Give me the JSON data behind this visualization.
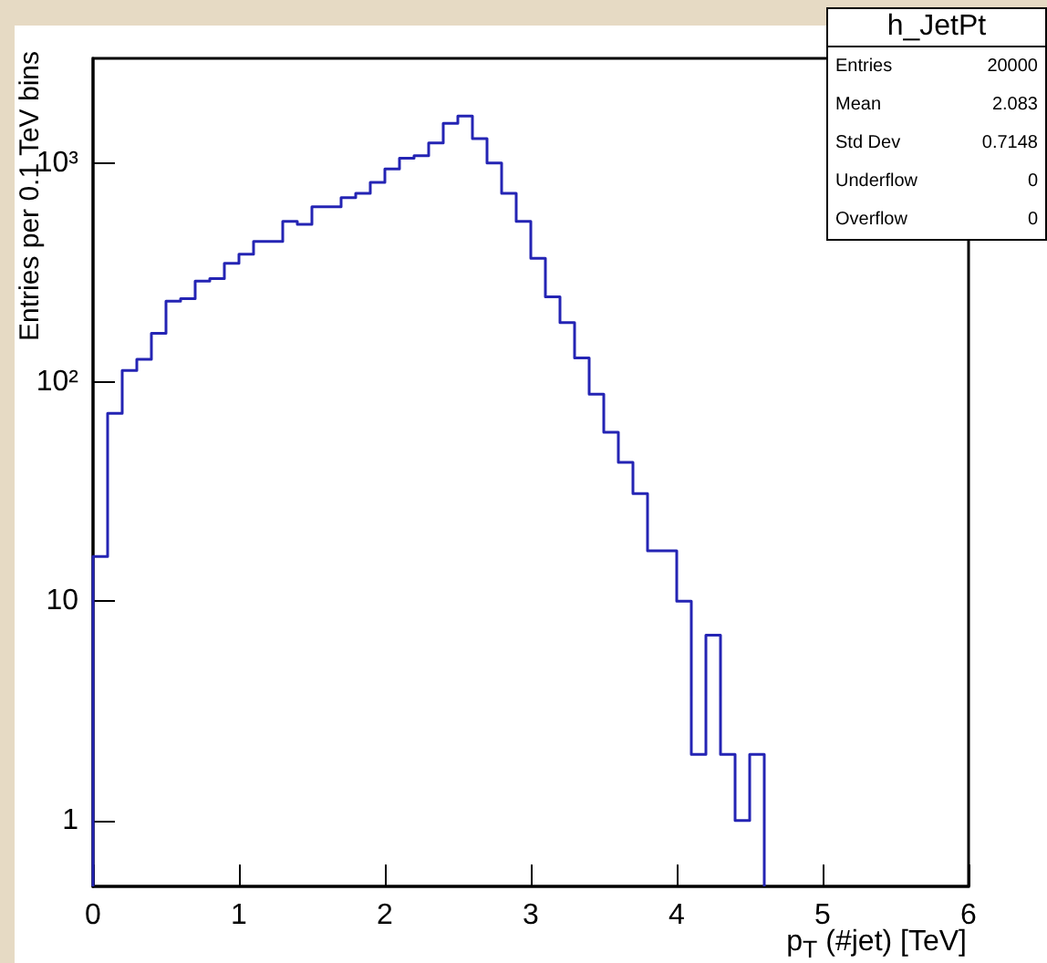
{
  "chart_data": {
    "type": "histogram",
    "title": "h_JetPt",
    "xlabel": "p$_{T}$ (#jet) [TeV]",
    "ylabel": "Entries per 0.1 TeV bins",
    "bins": [
      0,
      0.1,
      0.2,
      0.3,
      0.4,
      0.5,
      0.6,
      0.7,
      0.8,
      0.9,
      1.0,
      1.1,
      1.2,
      1.3,
      1.4,
      1.5,
      1.6,
      1.7,
      1.8,
      1.9,
      2.0,
      2.1,
      2.2,
      2.3,
      2.4,
      2.5,
      2.6,
      2.7,
      2.8,
      2.9,
      3.0,
      3.1,
      3.2,
      3.3,
      3.4,
      3.5,
      3.6,
      3.7,
      3.8,
      3.9,
      4.0,
      4.1,
      4.2,
      4.3,
      4.4,
      4.5,
      4.6
    ],
    "values": [
      16,
      72,
      113,
      127,
      167,
      234,
      240,
      289,
      297,
      348,
      383,
      438,
      438,
      541,
      524,
      631,
      631,
      695,
      726,
      815,
      938,
      1052,
      1080,
      1235,
      1517,
      1637,
      1291,
      1000,
      726,
      541,
      367,
      245,
      187,
      129,
      88,
      59,
      43,
      31,
      17,
      17,
      10,
      2,
      7,
      2,
      1,
      2
    ],
    "color": "#2424b4",
    "xlim": [
      0,
      6
    ],
    "xticks": [
      0,
      1,
      2,
      3,
      4,
      5,
      6
    ],
    "ylim": [
      0.5,
      3000
    ],
    "yticks": [
      1,
      10,
      {
        "value": 100,
        "label": "10²"
      },
      {
        "value": 1000,
        "label": "10³"
      }
    ],
    "log": "y",
    "grid": false,
    "annotations": [
      "Entries",
      "20000",
      "Mean",
      "2.083",
      "Std Dev",
      "0.7148",
      "Underflow",
      "0",
      "Overflow",
      "0"
    ]
  }
}
